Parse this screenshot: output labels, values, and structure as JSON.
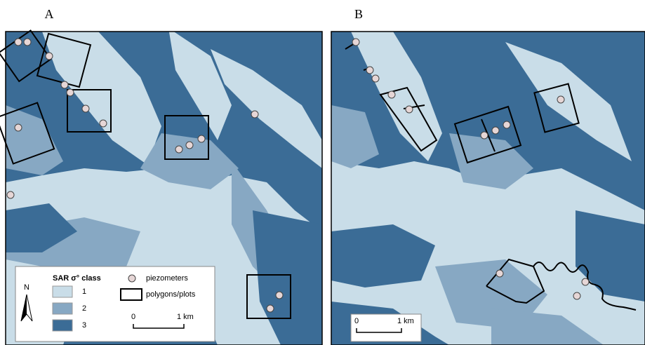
{
  "panels": [
    {
      "label": "A",
      "scale_bar": {
        "start": "0",
        "end": "1 km"
      }
    },
    {
      "label": "B",
      "scale_bar": {
        "start": "0",
        "end": "1 km"
      }
    }
  ],
  "legend": {
    "title": "SAR σ° class",
    "classes": [
      "1",
      "2",
      "3"
    ],
    "symbols": [
      "piezometers",
      "polygons/plots"
    ],
    "north": "N"
  }
}
